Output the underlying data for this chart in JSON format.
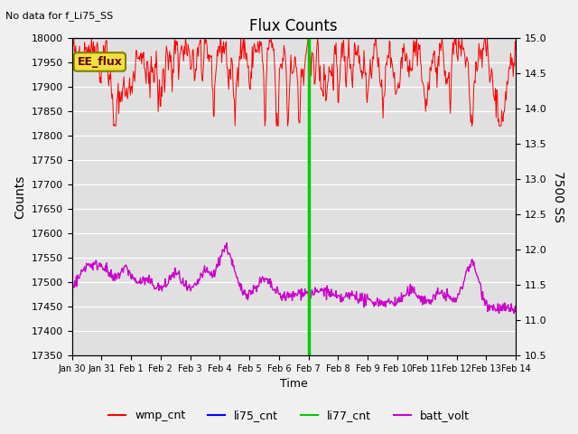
{
  "title": "Flux Counts",
  "top_left_text": "No data for f_Li75_SS",
  "xlabel": "Time",
  "ylabel_left": "Counts",
  "ylabel_right": "7500 SS",
  "ylim_left": [
    17350,
    18000
  ],
  "ylim_right": [
    10.5,
    15.0
  ],
  "annotation_box": "EE_flux",
  "annotation_box_color": "#f0e040",
  "vline_x": 8,
  "vline_color": "#00cc00",
  "x_ticks_labels": [
    "Jan 30",
    "Jan 31",
    "Feb 1",
    "Feb 2",
    "Feb 3",
    "Feb 4",
    "Feb 5",
    "Feb 6",
    "Feb 7",
    "Feb 8",
    "Feb 9",
    "Feb 10",
    "Feb 11",
    "Feb 12",
    "Feb 13",
    "Feb 14"
  ],
  "x_ticks_pos": [
    0,
    1,
    2,
    3,
    4,
    5,
    6,
    7,
    8,
    9,
    10,
    11,
    12,
    13,
    14,
    15
  ],
  "wmp_cnt_color": "#ff0000",
  "li75_cnt_color": "#0000ff",
  "li77_cnt_color": "#00cc00",
  "batt_volt_color": "#cc00cc",
  "right_axis_ticks": [
    10.5,
    11.0,
    11.5,
    12.0,
    12.5,
    13.0,
    13.5,
    14.0,
    14.5,
    15.0
  ],
  "left_axis_ticks": [
    17350,
    17400,
    17450,
    17500,
    17550,
    17600,
    17650,
    17700,
    17750,
    17800,
    17850,
    17900,
    17950,
    18000
  ],
  "num_points": 700,
  "seed": 42,
  "xlim": [
    0,
    15
  ]
}
